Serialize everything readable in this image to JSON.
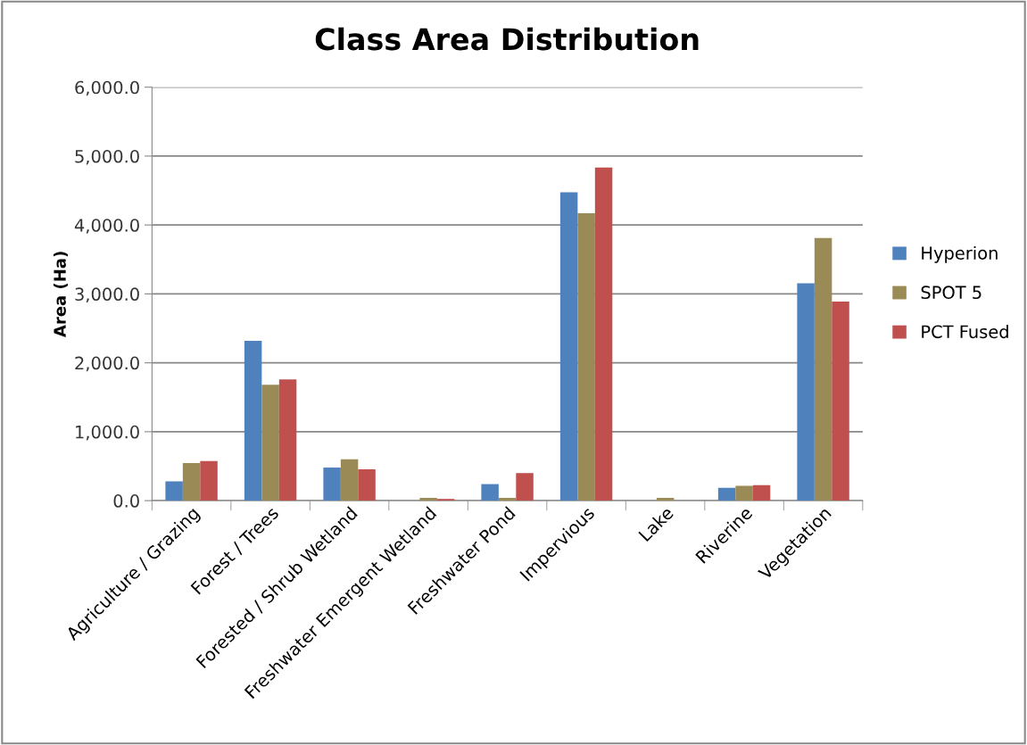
{
  "chart_data": {
    "type": "bar",
    "title": "Class Area Distribution",
    "ylabel": "Area (Ha)",
    "categories": [
      "Agriculture / Grazing",
      "Forest / Trees",
      "Forested / Shrub Wetland",
      "Freshwater Emergent Wetland",
      "Freshwater Pond",
      "Impervious",
      "Lake",
      "Riverine",
      "Vegetation"
    ],
    "series": [
      {
        "name": "Hyperion",
        "color": "#4f81bd",
        "values": [
          280,
          2320,
          480,
          0,
          240,
          4475,
          0,
          185,
          3155
        ]
      },
      {
        "name": "SPOT 5",
        "color": "#9a8a55",
        "values": [
          545,
          1680,
          600,
          40,
          40,
          4170,
          40,
          215,
          3810
        ]
      },
      {
        "name": "PCT Fused",
        "color": "#c0504d",
        "values": [
          575,
          1760,
          455,
          25,
          400,
          4835,
          0,
          225,
          2890
        ]
      }
    ],
    "ylim": [
      0,
      6000
    ],
    "yticks": [
      {
        "value": 0,
        "label": "0.0"
      },
      {
        "value": 1000,
        "label": "1,000.0"
      },
      {
        "value": 2000,
        "label": "2,000.0"
      },
      {
        "value": 3000,
        "label": "3,000.0"
      },
      {
        "value": 4000,
        "label": "4,000.0"
      },
      {
        "value": 5000,
        "label": "5,000.0"
      },
      {
        "value": 6000,
        "label": "6,000.0"
      }
    ],
    "grid": "y",
    "legend": "right"
  }
}
